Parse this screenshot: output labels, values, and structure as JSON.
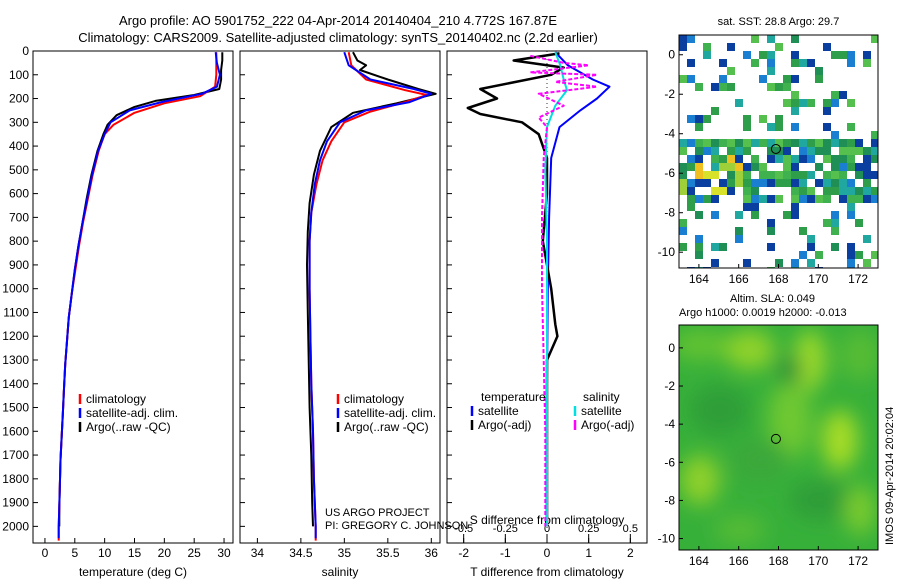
{
  "header": {
    "line1": "Argo profile: AO 5901752_222 04-Apr-2014 20140404_210 4.772S 167.87E",
    "line2": "Climatology: CARS2009. Satellite-adjusted climatology: synTS_20140402.nc (2.2d earlier)"
  },
  "colors": {
    "climatology": "#ff0000",
    "satellite": "#0000ff",
    "argo": "#000000",
    "sat_salinity": "#00e0e0",
    "argo_salinity_diff": "#ff00ff"
  },
  "credit": {
    "line1": "US ARGO PROJECT",
    "line2": "PI: GREGORY C. JOHNSON"
  },
  "side_stamp": "IMOS 09-Apr-2014 20:02:04",
  "chart_data": [
    {
      "type": "line",
      "xlabel": "temperature (deg C)",
      "xlim": [
        -2,
        31.5
      ],
      "ylim": [
        2070,
        0
      ],
      "xticks": [
        0,
        5,
        10,
        15,
        20,
        25,
        30
      ],
      "yticks": [
        0,
        100,
        200,
        300,
        400,
        500,
        600,
        700,
        800,
        900,
        1000,
        1100,
        1200,
        1300,
        1400,
        1500,
        1600,
        1700,
        1800,
        1900,
        2000
      ],
      "legend": {
        "placement": "lower-center",
        "entries": [
          "climatology",
          "satellite-adj. clim.",
          "Argo(..raw -QC)"
        ]
      },
      "series": [
        {
          "key": "climatology",
          "points": [
            [
              28.7,
              5
            ],
            [
              28.7,
              50
            ],
            [
              28.7,
              100
            ],
            [
              28.5,
              150
            ],
            [
              26,
              190
            ],
            [
              20,
              220
            ],
            [
              15,
              260
            ],
            [
              11.5,
              310
            ],
            [
              10,
              350
            ],
            [
              9,
              420
            ],
            [
              8,
              520
            ],
            [
              7.2,
              620
            ],
            [
              6.4,
              720
            ],
            [
              5.7,
              820
            ],
            [
              5.1,
              920
            ],
            [
              4.5,
              1020
            ],
            [
              4,
              1120
            ],
            [
              3.7,
              1220
            ],
            [
              3.4,
              1320
            ],
            [
              3.2,
              1420
            ],
            [
              3,
              1520
            ],
            [
              2.8,
              1620
            ],
            [
              2.6,
              1720
            ],
            [
              2.5,
              1820
            ],
            [
              2.4,
              1920
            ],
            [
              2.3,
              2000
            ],
            [
              2.3,
              2060
            ]
          ]
        },
        {
          "key": "satellite",
          "points": [
            [
              28.6,
              5
            ],
            [
              28.8,
              50
            ],
            [
              29.3,
              100
            ],
            [
              28.8,
              150
            ],
            [
              26.3,
              180
            ],
            [
              19.5,
              215
            ],
            [
              14.2,
              250
            ],
            [
              11,
              300
            ],
            [
              10,
              350
            ],
            [
              8.9,
              420
            ],
            [
              7.9,
              520
            ],
            [
              7.1,
              620
            ],
            [
              6.3,
              720
            ],
            [
              5.6,
              820
            ],
            [
              5,
              920
            ],
            [
              4.5,
              1020
            ],
            [
              4,
              1120
            ],
            [
              3.7,
              1220
            ],
            [
              3.4,
              1320
            ],
            [
              3.2,
              1420
            ],
            [
              3,
              1520
            ],
            [
              2.8,
              1620
            ],
            [
              2.6,
              1720
            ],
            [
              2.5,
              1820
            ],
            [
              2.4,
              1920
            ],
            [
              2.3,
              2000
            ],
            [
              2.3,
              2050
            ]
          ]
        },
        {
          "key": "argo",
          "points": [
            [
              29.7,
              5
            ],
            [
              29.7,
              40
            ],
            [
              29.5,
              80
            ],
            [
              29.5,
              120
            ],
            [
              29.2,
              160
            ],
            [
              25,
              185
            ],
            [
              18.5,
              210
            ],
            [
              15,
              235
            ],
            [
              12,
              270
            ],
            [
              10.5,
              310
            ],
            [
              9.8,
              350
            ],
            [
              8.8,
              420
            ],
            [
              7.8,
              520
            ],
            [
              7,
              620
            ],
            [
              6.3,
              720
            ],
            [
              5.6,
              820
            ],
            [
              5,
              920
            ],
            [
              4.5,
              1020
            ],
            [
              4,
              1120
            ],
            [
              3.7,
              1220
            ],
            [
              3.4,
              1320
            ],
            [
              3.2,
              1420
            ],
            [
              3,
              1520
            ],
            [
              2.8,
              1620
            ],
            [
              2.6,
              1720
            ],
            [
              2.5,
              1820
            ],
            [
              2.4,
              1920
            ],
            [
              2.4,
              2000
            ]
          ]
        }
      ]
    },
    {
      "type": "line",
      "xlabel": "salinity",
      "xlim": [
        33.8,
        36.1
      ],
      "ylim": [
        2070,
        0
      ],
      "xticks": [
        34,
        34.5,
        35,
        35.5,
        36
      ],
      "xticklabels": [
        "34",
        "34.5",
        "35",
        "35.5",
        "36"
      ],
      "legend": {
        "placement": "lower-right",
        "entries": [
          "climatology",
          "satellite-adj. clim.",
          "Argo(..raw -QC)"
        ]
      },
      "series": [
        {
          "key": "climatology",
          "points": [
            [
              35.05,
              5
            ],
            [
              35.08,
              60
            ],
            [
              35.25,
              120
            ],
            [
              35.7,
              165
            ],
            [
              35.95,
              185
            ],
            [
              35.7,
              215
            ],
            [
              35.3,
              255
            ],
            [
              35,
              300
            ],
            [
              34.85,
              380
            ],
            [
              34.75,
              460
            ],
            [
              34.68,
              560
            ],
            [
              34.62,
              680
            ],
            [
              34.6,
              800
            ],
            [
              34.6,
              1000
            ],
            [
              34.61,
              1200
            ],
            [
              34.62,
              1400
            ],
            [
              34.64,
              1600
            ],
            [
              34.65,
              1800
            ],
            [
              34.67,
              2000
            ],
            [
              34.67,
              2060
            ]
          ]
        },
        {
          "key": "satellite",
          "points": [
            [
              35,
              5
            ],
            [
              35.05,
              60
            ],
            [
              35.3,
              120
            ],
            [
              35.8,
              160
            ],
            [
              36,
              180
            ],
            [
              35.75,
              215
            ],
            [
              35.25,
              250
            ],
            [
              34.95,
              300
            ],
            [
              34.8,
              380
            ],
            [
              34.72,
              460
            ],
            [
              34.66,
              560
            ],
            [
              34.62,
              680
            ],
            [
              34.6,
              800
            ],
            [
              34.6,
              1000
            ],
            [
              34.61,
              1200
            ],
            [
              34.62,
              1400
            ],
            [
              34.64,
              1600
            ],
            [
              34.65,
              1800
            ],
            [
              34.67,
              2000
            ],
            [
              34.67,
              2050
            ]
          ]
        },
        {
          "key": "argo",
          "points": [
            [
              35.1,
              5
            ],
            [
              35.15,
              40
            ],
            [
              35.25,
              60
            ],
            [
              35.18,
              80
            ],
            [
              35.5,
              120
            ],
            [
              35.85,
              160
            ],
            [
              36.05,
              180
            ],
            [
              35.6,
              220
            ],
            [
              35.1,
              260
            ],
            [
              34.85,
              320
            ],
            [
              34.72,
              420
            ],
            [
              34.65,
              520
            ],
            [
              34.6,
              640
            ],
            [
              34.58,
              760
            ],
            [
              34.57,
              900
            ],
            [
              34.58,
              1100
            ],
            [
              34.59,
              1300
            ],
            [
              34.6,
              1500
            ],
            [
              34.62,
              1700
            ],
            [
              34.63,
              1900
            ],
            [
              34.64,
              2000
            ]
          ]
        }
      ]
    },
    {
      "type": "line",
      "xlabel": "T difference from climatology",
      "x2label": "S difference from climatology",
      "xlim": [
        -2.4,
        2.4
      ],
      "ylim": [
        2070,
        0
      ],
      "x2lim": [
        -0.6,
        0.6
      ],
      "xticks": [
        -2,
        -1,
        0,
        1,
        2
      ],
      "x2ticks": [
        -0.5,
        -0.25,
        0,
        0.25,
        0.5
      ],
      "legend": {
        "placement": "lower-center",
        "temperature_title": "temperature",
        "salinity_title": "salinity",
        "entries": [
          "satellite",
          "Argo(-adj)",
          "satellite",
          "Argo(-adj)"
        ]
      },
      "series": [
        {
          "key": "satellite",
          "axis": "T",
          "points": [
            [
              0.2,
              5
            ],
            [
              0.5,
              60
            ],
            [
              1.1,
              120
            ],
            [
              1.5,
              150
            ],
            [
              1.2,
              200
            ],
            [
              0.8,
              250
            ],
            [
              0.3,
              320
            ],
            [
              0.1,
              450
            ],
            [
              0.05,
              700
            ],
            [
              0.02,
              1000
            ],
            [
              0,
              1400
            ],
            [
              0,
              1800
            ],
            [
              0,
              2000
            ]
          ]
        },
        {
          "key": "argo",
          "axis": "T",
          "points": [
            [
              0.3,
              10
            ],
            [
              -0.8,
              40
            ],
            [
              0.4,
              70
            ],
            [
              0.1,
              100
            ],
            [
              -1.6,
              160
            ],
            [
              -1.2,
              200
            ],
            [
              -1.9,
              240
            ],
            [
              -1.6,
              265
            ],
            [
              -0.6,
              300
            ],
            [
              -0.2,
              350
            ],
            [
              0,
              450
            ],
            [
              0,
              600
            ],
            [
              -0.1,
              800
            ],
            [
              0.1,
              1000
            ],
            [
              0.2,
              1150
            ],
            [
              0.25,
              1200
            ],
            [
              0,
              1300
            ],
            [
              0,
              1500
            ],
            [
              0,
              1700
            ],
            [
              0,
              1900
            ],
            [
              0,
              2000
            ]
          ]
        },
        {
          "key": "sat_salinity",
          "axis": "S",
          "points": [
            [
              0.05,
              5
            ],
            [
              0.08,
              60
            ],
            [
              0.1,
              120
            ],
            [
              0.12,
              165
            ],
            [
              0.05,
              230
            ],
            [
              0,
              320
            ],
            [
              -0.01,
              500
            ],
            [
              0,
              800
            ],
            [
              0,
              1200
            ],
            [
              0,
              1600
            ],
            [
              0,
              2000
            ]
          ]
        },
        {
          "key": "argo_salinity_diff",
          "axis": "S",
          "points": [
            [
              -0.1,
              20
            ],
            [
              0.1,
              50
            ],
            [
              0.25,
              60
            ],
            [
              -0.1,
              90
            ],
            [
              0.3,
              100
            ],
            [
              0.05,
              130
            ],
            [
              0.3,
              150
            ],
            [
              -0.05,
              180
            ],
            [
              0.1,
              230
            ],
            [
              -0.05,
              280
            ],
            [
              0,
              320
            ],
            [
              -0.02,
              450
            ],
            [
              -0.03,
              700
            ],
            [
              -0.03,
              1000
            ],
            [
              -0.02,
              1300
            ],
            [
              -0.01,
              1600
            ],
            [
              -0.01,
              1900
            ],
            [
              -0.01,
              2000
            ]
          ]
        }
      ]
    },
    {
      "type": "heatmap",
      "title": "sat. SST: 28.8 Argo: 29.7",
      "xlim": [
        163,
        173
      ],
      "ylim": [
        -10.8,
        1
      ],
      "xticks": [
        164,
        166,
        168,
        170,
        172
      ],
      "yticks": [
        0,
        -2,
        -4,
        -6,
        -8,
        -10
      ],
      "marker": {
        "x": 167.87,
        "y": -4.772
      }
    },
    {
      "type": "heatmap",
      "title": "Altim. SLA: 0.049",
      "subtitle": "Argo h1000: 0.0019 h2000: -0.013",
      "xlim": [
        163,
        173
      ],
      "ylim": [
        -10.6,
        1.2
      ],
      "xticks": [
        164,
        166,
        168,
        170,
        172
      ],
      "yticks": [
        0,
        -2,
        -4,
        -6,
        -8,
        -10
      ],
      "marker": {
        "x": 167.87,
        "y": -4.772
      }
    }
  ]
}
